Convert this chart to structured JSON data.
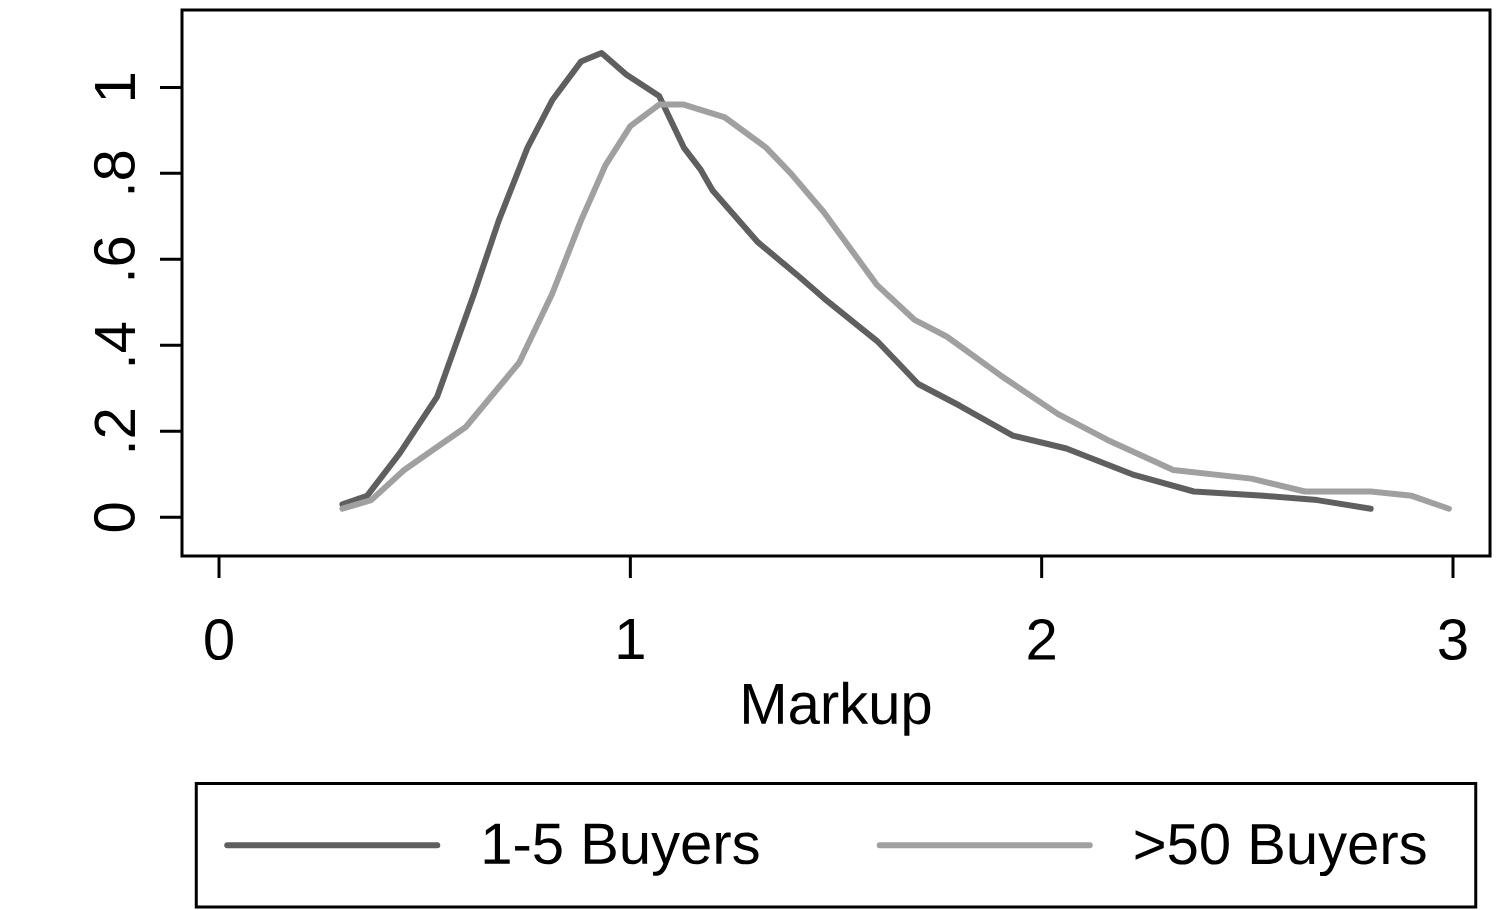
{
  "chart_data": {
    "type": "line",
    "xlabel": "Markup",
    "series": [
      {
        "name": "1-5 Buyers",
        "color": "#5f5f5f",
        "x": [
          0.3,
          0.36,
          0.44,
          0.53,
          0.62,
          0.68,
          0.75,
          0.81,
          0.88,
          0.93,
          0.99,
          1.07,
          1.13,
          1.17,
          1.2,
          1.31,
          1.41,
          1.47,
          1.6,
          1.7,
          1.8,
          1.93,
          2.06,
          2.22,
          2.37,
          2.54,
          2.67,
          2.8
        ],
        "values": [
          0.03,
          0.05,
          0.15,
          0.28,
          0.52,
          0.69,
          0.86,
          0.97,
          1.06,
          1.08,
          1.03,
          0.98,
          0.86,
          0.81,
          0.76,
          0.64,
          0.56,
          0.51,
          0.41,
          0.31,
          0.26,
          0.19,
          0.16,
          0.1,
          0.06,
          0.05,
          0.04,
          0.02
        ]
      },
      {
        "name": ">50 Buyers",
        "color": "#a0a0a0",
        "x": [
          0.3,
          0.37,
          0.45,
          0.6,
          0.73,
          0.81,
          0.88,
          0.94,
          1.0,
          1.07,
          1.13,
          1.23,
          1.33,
          1.39,
          1.47,
          1.6,
          1.69,
          1.77,
          1.9,
          2.04,
          2.16,
          2.32,
          2.51,
          2.64,
          2.8,
          2.9,
          2.99
        ],
        "values": [
          0.02,
          0.04,
          0.11,
          0.21,
          0.36,
          0.52,
          0.69,
          0.82,
          0.91,
          0.96,
          0.96,
          0.93,
          0.86,
          0.8,
          0.71,
          0.54,
          0.46,
          0.42,
          0.33,
          0.24,
          0.18,
          0.11,
          0.09,
          0.06,
          0.06,
          0.05,
          0.02
        ]
      }
    ],
    "xlim": [
      -0.09,
      3.09
    ],
    "ylim": [
      -0.09,
      1.18
    ],
    "xticks": [
      0,
      1,
      2,
      3
    ],
    "yticks": [
      0,
      {
        "value": 0.2,
        "label": ".2"
      },
      {
        "value": 0.4,
        "label": ".4"
      },
      {
        "value": 0.6,
        "label": ".6"
      },
      {
        "value": 0.8,
        "label": ".8"
      },
      1
    ],
    "legend": "bottom",
    "marker": "none",
    "line_style": "solid"
  }
}
